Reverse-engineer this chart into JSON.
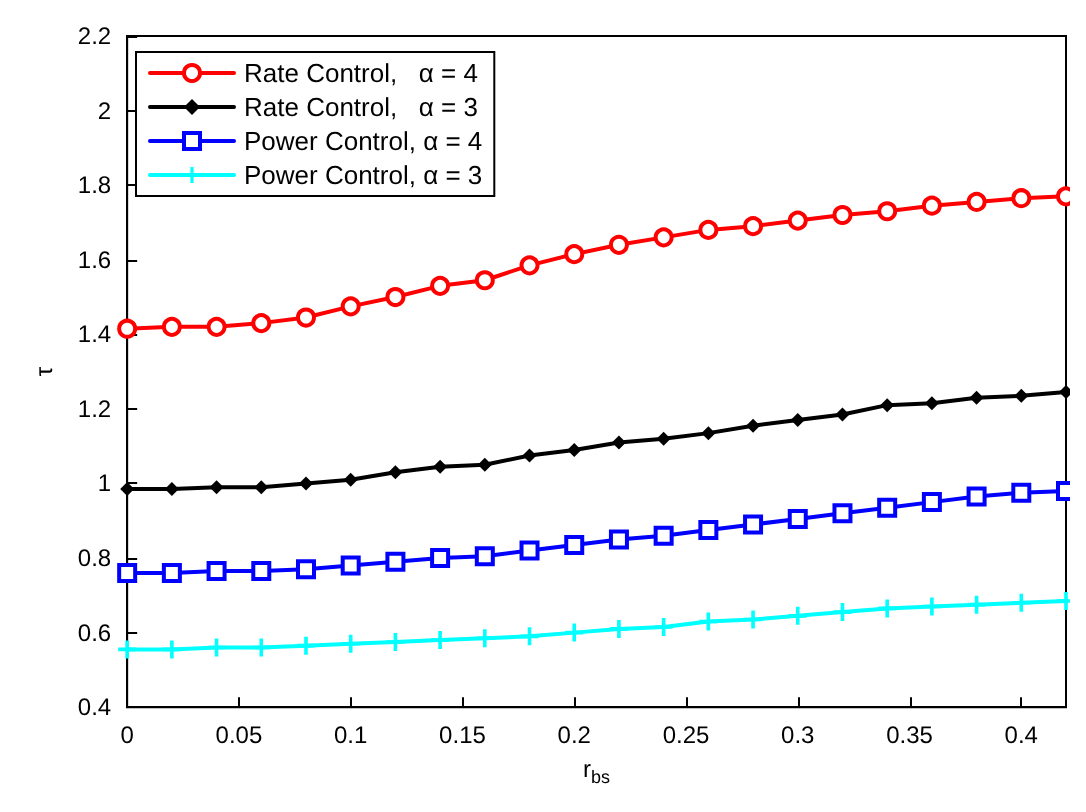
{
  "chart_data": {
    "type": "line",
    "xlabel": "r$_{bs}$",
    "ylabel": "τ",
    "x": [
      0,
      0.02,
      0.04,
      0.06,
      0.08,
      0.1,
      0.12,
      0.14,
      0.16,
      0.18,
      0.2,
      0.22,
      0.24,
      0.26,
      0.28,
      0.3,
      0.32,
      0.34,
      0.36,
      0.38,
      0.4,
      0.42
    ],
    "series": [
      {
        "name": "Rate Control,   α = 4",
        "color": "#ff0000",
        "marker": "circle",
        "values": [
          1.415,
          1.42,
          1.42,
          1.43,
          1.445,
          1.475,
          1.5,
          1.53,
          1.545,
          1.585,
          1.615,
          1.64,
          1.66,
          1.68,
          1.69,
          1.705,
          1.72,
          1.73,
          1.745,
          1.755,
          1.765,
          1.77
        ]
      },
      {
        "name": "Rate Control,   α = 3",
        "color": "#000000",
        "marker": "diamond",
        "values": [
          0.985,
          0.985,
          0.99,
          0.99,
          1.0,
          1.01,
          1.03,
          1.045,
          1.05,
          1.075,
          1.09,
          1.11,
          1.12,
          1.135,
          1.155,
          1.17,
          1.185,
          1.21,
          1.215,
          1.23,
          1.235,
          1.245
        ]
      },
      {
        "name": "Power Control, α = 4",
        "color": "#0000ff",
        "marker": "square",
        "values": [
          0.76,
          0.76,
          0.765,
          0.765,
          0.77,
          0.78,
          0.79,
          0.8,
          0.805,
          0.82,
          0.835,
          0.85,
          0.86,
          0.875,
          0.89,
          0.905,
          0.92,
          0.935,
          0.95,
          0.965,
          0.975,
          0.98
        ]
      },
      {
        "name": "Power Control, α = 3",
        "color": "#00ffff",
        "marker": "cross",
        "values": [
          0.555,
          0.555,
          0.56,
          0.56,
          0.565,
          0.57,
          0.575,
          0.58,
          0.585,
          0.59,
          0.6,
          0.61,
          0.615,
          0.63,
          0.635,
          0.645,
          0.655,
          0.665,
          0.67,
          0.675,
          0.68,
          0.685
        ]
      }
    ],
    "xlim": [
      0,
      0.42
    ],
    "xticks": [
      0,
      0.05,
      0.1,
      0.15,
      0.2,
      0.25,
      0.3,
      0.35,
      0.4
    ],
    "ylim": [
      0.4,
      2.2
    ],
    "yticks": [
      0.4,
      0.6,
      0.8,
      1,
      1.2,
      1.4,
      1.6,
      1.8,
      2,
      2.2
    ],
    "grid": false,
    "legend": "top left",
    "line_style": "solid"
  }
}
